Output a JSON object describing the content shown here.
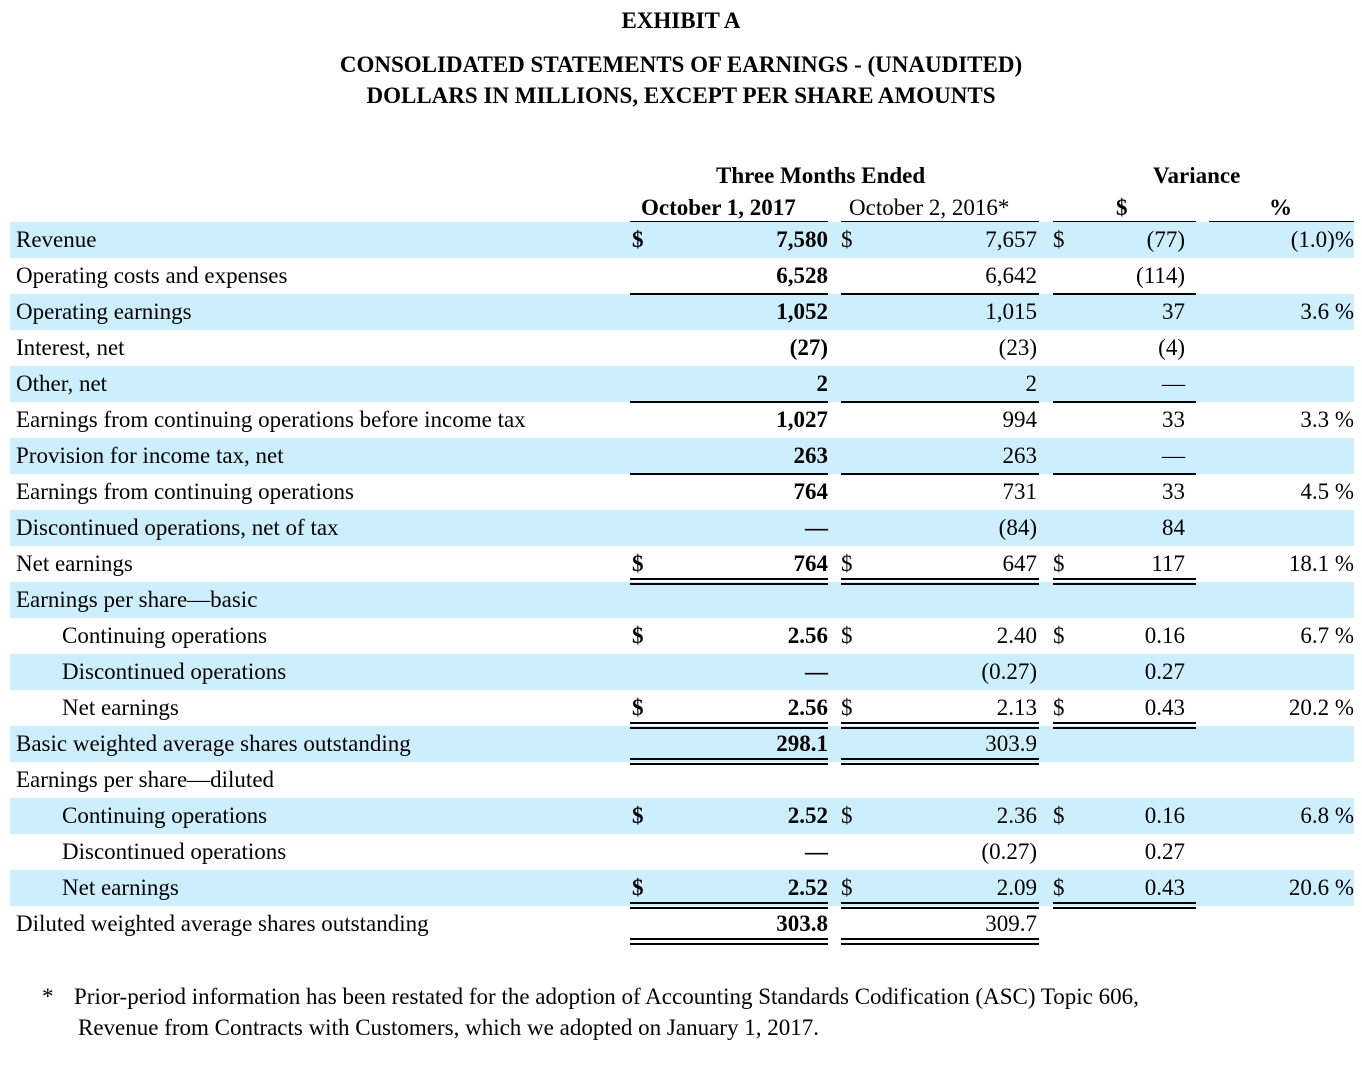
{
  "header": {
    "exhibit": "EXHIBIT A",
    "title": "CONSOLIDATED STATEMENTS OF EARNINGS - (UNAUDITED)",
    "subtitle": "DOLLARS IN MILLIONS, EXCEPT PER SHARE AMOUNTS"
  },
  "columns": {
    "group_three_months": "Three Months Ended",
    "group_variance": "Variance",
    "col1": "October 1, 2017",
    "col2": "October 2, 2016*",
    "col3": "$",
    "col4": "%"
  },
  "rows": [
    {
      "label": "Revenue",
      "s1": "$",
      "v1": "7,580",
      "s2": "$",
      "v2": "7,657",
      "s3": "$",
      "v3": "(77)",
      "pct": "(1.0)%"
    },
    {
      "label": "Operating costs and expenses",
      "s1": "",
      "v1": "6,528",
      "s2": "",
      "v2": "6,642",
      "s3": "",
      "v3": "(114)",
      "pct": ""
    },
    {
      "label": "Operating earnings",
      "s1": "",
      "v1": "1,052",
      "s2": "",
      "v2": "1,015",
      "s3": "",
      "v3": "37",
      "pct": "3.6 %"
    },
    {
      "label": "Interest, net",
      "s1": "",
      "v1": "(27)",
      "s2": "",
      "v2": "(23)",
      "s3": "",
      "v3": "(4)",
      "pct": ""
    },
    {
      "label": "Other, net",
      "s1": "",
      "v1": "2",
      "s2": "",
      "v2": "2",
      "s3": "",
      "v3": "—",
      "pct": ""
    },
    {
      "label": "Earnings from continuing operations before income tax",
      "s1": "",
      "v1": "1,027",
      "s2": "",
      "v2": "994",
      "s3": "",
      "v3": "33",
      "pct": "3.3 %"
    },
    {
      "label": "Provision for income tax, net",
      "s1": "",
      "v1": "263",
      "s2": "",
      "v2": "263",
      "s3": "",
      "v3": "—",
      "pct": ""
    },
    {
      "label": "Earnings from continuing operations",
      "s1": "",
      "v1": "764",
      "s2": "",
      "v2": "731",
      "s3": "",
      "v3": "33",
      "pct": "4.5 %"
    },
    {
      "label": "Discontinued operations, net of tax",
      "s1": "",
      "v1": "—",
      "s2": "",
      "v2": "(84)",
      "s3": "",
      "v3": "84",
      "pct": ""
    },
    {
      "label": "Net earnings",
      "s1": "$",
      "v1": "764",
      "s2": "$",
      "v2": "647",
      "s3": "$",
      "v3": "117",
      "pct": "18.1 %"
    },
    {
      "label": "Earnings per share—basic",
      "s1": "",
      "v1": "",
      "s2": "",
      "v2": "",
      "s3": "",
      "v3": "",
      "pct": ""
    },
    {
      "label": "Continuing operations",
      "s1": "$",
      "v1": "2.56",
      "s2": "$",
      "v2": "2.40",
      "s3": "$",
      "v3": "0.16",
      "pct": "6.7 %"
    },
    {
      "label": "Discontinued operations",
      "s1": "",
      "v1": "—",
      "s2": "",
      "v2": "(0.27)",
      "s3": "",
      "v3": "0.27",
      "pct": ""
    },
    {
      "label": "Net earnings",
      "s1": "$",
      "v1": "2.56",
      "s2": "$",
      "v2": "2.13",
      "s3": "$",
      "v3": "0.43",
      "pct": "20.2 %"
    },
    {
      "label": "Basic weighted average shares outstanding",
      "s1": "",
      "v1": "298.1",
      "s2": "",
      "v2": "303.9",
      "s3": "",
      "v3": "",
      "pct": ""
    },
    {
      "label": "Earnings per share—diluted",
      "s1": "",
      "v1": "",
      "s2": "",
      "v2": "",
      "s3": "",
      "v3": "",
      "pct": ""
    },
    {
      "label": "Continuing operations",
      "s1": "$",
      "v1": "2.52",
      "s2": "$",
      "v2": "2.36",
      "s3": "$",
      "v3": "0.16",
      "pct": "6.8 %"
    },
    {
      "label": "Discontinued operations",
      "s1": "",
      "v1": "—",
      "s2": "",
      "v2": "(0.27)",
      "s3": "",
      "v3": "0.27",
      "pct": ""
    },
    {
      "label": "Net earnings",
      "s1": "$",
      "v1": "2.52",
      "s2": "$",
      "v2": "2.09",
      "s3": "$",
      "v3": "0.43",
      "pct": "20.6 %"
    },
    {
      "label": "Diluted weighted average shares outstanding",
      "s1": "",
      "v1": "303.8",
      "s2": "",
      "v2": "309.7",
      "s3": "",
      "v3": "",
      "pct": ""
    }
  ],
  "footnote": {
    "marker": "*",
    "line1": "Prior-period information has been restated for the adoption of Accounting Standards Codification (ASC) Topic 606,",
    "line2": "Revenue from Contracts with Customers, which we adopted on January 1, 2017."
  }
}
